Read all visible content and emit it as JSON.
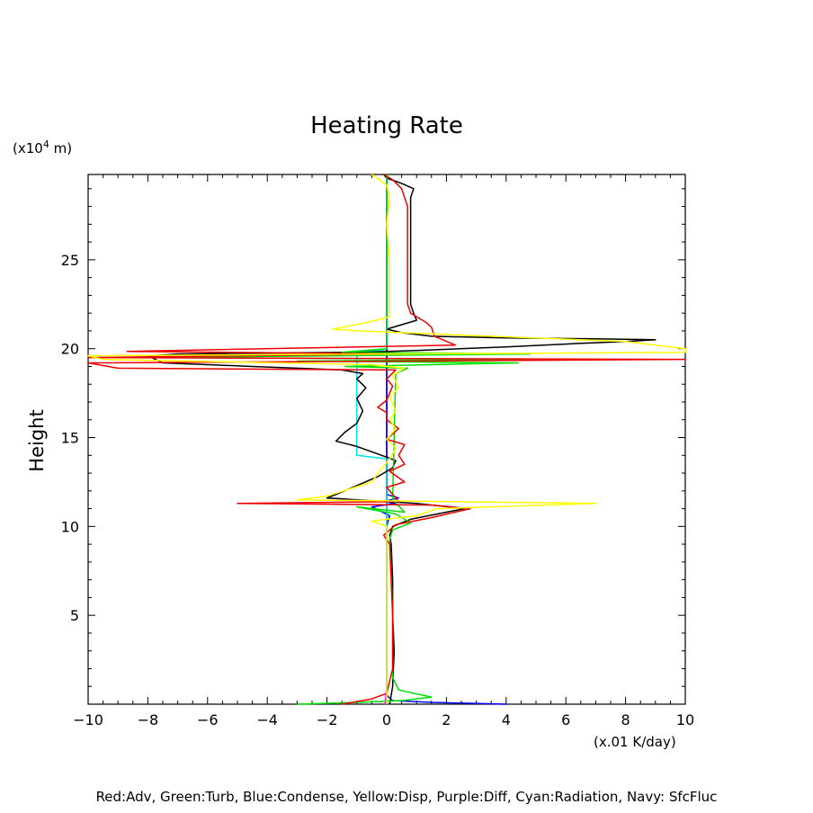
{
  "chart_data": {
    "type": "line",
    "title": "Heating Rate",
    "ylabel": "Height",
    "yunit_prefix": "(x10",
    "yunit_exp": "4",
    "yunit_suffix": " m)",
    "xunit": "(x.01 K/day)",
    "legend": "Red:Adv, Green:Turb, Blue:Condense, Yellow:Disp, Purple:Diff, Cyan:Radiation, Navy: SfcFluc",
    "xlim": [
      -10,
      10
    ],
    "ylim": [
      0,
      29.8
    ],
    "xticks": [
      "−10",
      "−8",
      "−6",
      "−4",
      "−2",
      "0",
      "2",
      "4",
      "6",
      "8",
      "10"
    ],
    "xtick_values": [
      -10,
      -8,
      -6,
      -4,
      -2,
      0,
      2,
      4,
      6,
      8,
      10
    ],
    "yticks": [
      "5",
      "10",
      "15",
      "20",
      "25"
    ],
    "ytick_values": [
      5,
      10,
      15,
      20,
      25
    ],
    "series": [
      {
        "name": "Navy: SfcFluc",
        "color": "#000080",
        "points": [
          [
            0,
            0
          ],
          [
            0,
            29.8
          ]
        ]
      },
      {
        "name": "Purple:Diff",
        "color": "#ff00ff",
        "points": [
          [
            -0.05,
            0
          ],
          [
            0,
            1
          ],
          [
            0,
            29.8
          ]
        ]
      },
      {
        "name": "Blue:Condense",
        "color": "#0000ff",
        "points": [
          [
            4,
            0
          ],
          [
            1.5,
            0.1
          ],
          [
            0.2,
            0.2
          ],
          [
            0,
            0.5
          ],
          [
            0,
            10
          ],
          [
            0.1,
            10.6
          ],
          [
            -0.5,
            11.1
          ],
          [
            0.3,
            11.3
          ],
          [
            -0.1,
            11.4
          ],
          [
            0.4,
            11.6
          ],
          [
            0,
            11.8
          ],
          [
            0,
            29.8
          ]
        ]
      },
      {
        "name": "Cyan:Radiation",
        "color": "#00e5e5",
        "points": [
          [
            0,
            0
          ],
          [
            0,
            13.8
          ],
          [
            -1,
            14
          ],
          [
            -1,
            19.8
          ],
          [
            -0.2,
            19.9
          ],
          [
            0,
            20
          ],
          [
            0,
            29.8
          ]
        ]
      },
      {
        "name": "Black",
        "color": "#000000",
        "points": [
          [
            0.1,
            0
          ],
          [
            0.2,
            1
          ],
          [
            0.25,
            3
          ],
          [
            0.2,
            5
          ],
          [
            0.2,
            7
          ],
          [
            0.15,
            9
          ],
          [
            0.1,
            9.5
          ],
          [
            0.2,
            10
          ],
          [
            0.8,
            10.4
          ],
          [
            2,
            10.8
          ],
          [
            2.6,
            11
          ],
          [
            1,
            11.3
          ],
          [
            -2,
            11.6
          ],
          [
            -1.7,
            11.8
          ],
          [
            -1,
            12.3
          ],
          [
            -0.3,
            12.8
          ],
          [
            0.2,
            13.3
          ],
          [
            0.3,
            13.7
          ],
          [
            0,
            13.9
          ],
          [
            -1,
            14.5
          ],
          [
            -1.7,
            14.8
          ],
          [
            -1.4,
            15.3
          ],
          [
            -1,
            15.8
          ],
          [
            -0.8,
            16.5
          ],
          [
            -1,
            17.2
          ],
          [
            -0.7,
            17.8
          ],
          [
            -1,
            18.3
          ],
          [
            -0.8,
            18.6
          ],
          [
            -1.5,
            18.8
          ],
          [
            -3,
            18.9
          ],
          [
            -4.5,
            19
          ],
          [
            -6,
            19.1
          ],
          [
            -7.5,
            19.2
          ],
          [
            -8,
            19.6
          ],
          [
            -7,
            19.7
          ],
          [
            -4,
            19.75
          ],
          [
            -1,
            19.8
          ],
          [
            1,
            19.9
          ],
          [
            4,
            20.1
          ],
          [
            6.5,
            20.3
          ],
          [
            8,
            20.4
          ],
          [
            9,
            20.5
          ],
          [
            7,
            20.55
          ],
          [
            4,
            20.6
          ],
          [
            1.5,
            20.7
          ],
          [
            0.5,
            20.9
          ],
          [
            0,
            21.1
          ],
          [
            1,
            21.6
          ],
          [
            0.9,
            22
          ],
          [
            0.8,
            22.5
          ],
          [
            0.8,
            23.3
          ],
          [
            0.8,
            25
          ],
          [
            0.8,
            27.5
          ],
          [
            0.8,
            28.5
          ],
          [
            0.9,
            29
          ],
          [
            0.5,
            29.3
          ],
          [
            0,
            29.6
          ],
          [
            -0.1,
            29.8
          ]
        ]
      },
      {
        "name": "Green:Turb",
        "color": "#00e000",
        "points": [
          [
            -3,
            0
          ],
          [
            -1,
            0.1
          ],
          [
            0.5,
            0.2
          ],
          [
            1.5,
            0.4
          ],
          [
            0.4,
            0.8
          ],
          [
            0.2,
            1.5
          ],
          [
            0.2,
            5
          ],
          [
            0.1,
            9.3
          ],
          [
            0.2,
            9.8
          ],
          [
            0.8,
            10.2
          ],
          [
            0.3,
            10.7
          ],
          [
            -1,
            11.1
          ],
          [
            0.6,
            10.8
          ],
          [
            0.2,
            11.5
          ],
          [
            0.3,
            18.6
          ],
          [
            0.7,
            18.9
          ],
          [
            -1.4,
            19
          ],
          [
            4.4,
            19.2
          ],
          [
            -3,
            19.3
          ],
          [
            4.5,
            19.4
          ],
          [
            -8,
            19.5
          ],
          [
            4.8,
            19.7
          ],
          [
            -1.5,
            19.8
          ],
          [
            0,
            20
          ],
          [
            0,
            29.8
          ]
        ]
      },
      {
        "name": "Red:Adv",
        "color": "#ee0000",
        "points": [
          [
            -1.5,
            0
          ],
          [
            -0.5,
            0.3
          ],
          [
            0,
            0.6
          ],
          [
            0.2,
            2
          ],
          [
            0.2,
            5
          ],
          [
            0.1,
            9
          ],
          [
            -0.1,
            9.5
          ],
          [
            0.3,
            10.1
          ],
          [
            1.5,
            10.5
          ],
          [
            2.8,
            11
          ],
          [
            1.5,
            11.2
          ],
          [
            -5,
            11.3
          ],
          [
            0.4,
            11.4
          ],
          [
            0,
            12.2
          ],
          [
            0.6,
            12.5
          ],
          [
            0.1,
            13.1
          ],
          [
            0.6,
            13.5
          ],
          [
            0.4,
            14
          ],
          [
            0.6,
            14.6
          ],
          [
            0,
            14.9
          ],
          [
            0.4,
            15.5
          ],
          [
            0,
            16
          ],
          [
            0,
            16.4
          ],
          [
            -0.3,
            16.7
          ],
          [
            0,
            17.1
          ],
          [
            0.1,
            17.5
          ],
          [
            0.2,
            17.9
          ],
          [
            0,
            18.3
          ],
          [
            0.3,
            18.8
          ],
          [
            -9,
            18.9
          ],
          [
            -10,
            19.2
          ],
          [
            10,
            19.4
          ],
          [
            -10,
            19.5
          ],
          [
            0.5,
            19.7
          ],
          [
            -8.7,
            19.85
          ],
          [
            2.3,
            20.2
          ],
          [
            1.6,
            20.7
          ],
          [
            1.5,
            21.2
          ],
          [
            1.3,
            21.5
          ],
          [
            1,
            21.8
          ],
          [
            0.8,
            22
          ],
          [
            0.7,
            22.5
          ],
          [
            0.7,
            25
          ],
          [
            0.7,
            28
          ],
          [
            0.5,
            29
          ],
          [
            0.2,
            29.5
          ],
          [
            -0.1,
            29.8
          ]
        ]
      },
      {
        "name": "Yellow:Disp",
        "color": "#ffff00",
        "points": [
          [
            0,
            0
          ],
          [
            0,
            3
          ],
          [
            0,
            8
          ],
          [
            0,
            10
          ],
          [
            -0.5,
            10.3
          ],
          [
            1,
            10.6
          ],
          [
            1.7,
            11
          ],
          [
            7,
            11.3
          ],
          [
            -3,
            11.5
          ],
          [
            -2,
            11.7
          ],
          [
            -0.5,
            12.5
          ],
          [
            -0.2,
            13.2
          ],
          [
            0.1,
            13.8
          ],
          [
            0.3,
            14.4
          ],
          [
            0,
            14.9
          ],
          [
            0.3,
            15.5
          ],
          [
            0.1,
            16
          ],
          [
            0.3,
            16.5
          ],
          [
            0.1,
            17.3
          ],
          [
            0.4,
            17.8
          ],
          [
            0.2,
            18.5
          ],
          [
            0.6,
            18.9
          ],
          [
            -0.5,
            19.1
          ],
          [
            -9.5,
            19.4
          ],
          [
            -10,
            19.6
          ],
          [
            10,
            19.8
          ],
          [
            10,
            20
          ],
          [
            8,
            20.4
          ],
          [
            -1,
            21
          ],
          [
            -1.8,
            21.1
          ],
          [
            -0.6,
            21.5
          ],
          [
            0.1,
            21.8
          ],
          [
            0.1,
            22.5
          ],
          [
            0.1,
            25
          ],
          [
            0,
            27
          ],
          [
            0.1,
            28.5
          ],
          [
            0,
            29.2
          ],
          [
            -0.5,
            29.8
          ]
        ]
      }
    ]
  }
}
